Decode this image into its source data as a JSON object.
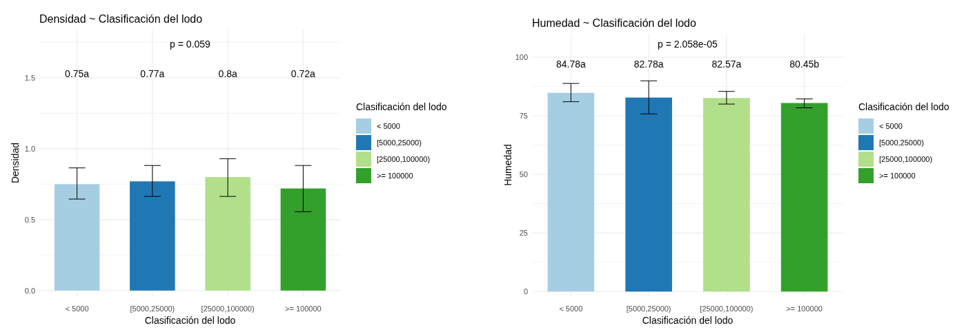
{
  "chart_data": [
    {
      "type": "bar",
      "title": "Densidad ~ Clasificación del lodo",
      "xlabel": "Clasificación del lodo",
      "ylabel": "Densidad",
      "legend_title": "Clasificación del lodo",
      "categories": [
        "< 5000",
        "[5000,25000)",
        "[25000,100000)",
        ">= 100000"
      ],
      "series": [
        {
          "name": "< 5000",
          "color": "#a6cee3",
          "values": [
            0.75,
            null,
            null,
            null
          ],
          "errors": [
            [
              0.645,
              0.865
            ],
            null,
            null,
            null
          ]
        },
        {
          "name": "[5000,25000)",
          "color": "#1f78b4",
          "values": [
            null,
            0.77,
            null,
            null
          ],
          "errors": [
            null,
            [
              0.664,
              0.882
            ],
            null,
            null
          ]
        },
        {
          "name": "[25000,100000)",
          "color": "#b2df8a",
          "values": [
            null,
            null,
            0.8,
            null
          ],
          "errors": [
            null,
            null,
            [
              0.664,
              0.93
            ],
            null
          ]
        },
        {
          "name": ">= 100000",
          "color": "#33a02c",
          "values": [
            null,
            null,
            null,
            0.72
          ],
          "errors": [
            null,
            null,
            null,
            [
              0.556,
              0.882
            ]
          ]
        }
      ],
      "ylim": [
        -0.04,
        1.84
      ],
      "yticks": [
        {
          "value": 0,
          "label": "0.0"
        },
        {
          "value": 0.25,
          "label": null
        },
        {
          "value": 0.5,
          "label": "0.5"
        },
        {
          "value": 0.75,
          "label": null
        },
        {
          "value": 1,
          "label": "1.0"
        },
        {
          "value": 1.25,
          "label": null
        },
        {
          "value": 1.5,
          "label": "1.5"
        },
        {
          "value": 1.75,
          "label": null
        }
      ],
      "grid": true,
      "legend": "right",
      "annotations": [
        "p = 0.059",
        "0.75a",
        "0.77a",
        "0.8a",
        "0.72a"
      ]
    },
    {
      "type": "bar",
      "title": "Humedad ~ Clasificación del lodo",
      "xlabel": "Clasificación del lodo",
      "ylabel": "Humedad",
      "legend_title": "Clasificación del lodo",
      "categories": [
        "< 5000",
        "[5000,25000)",
        "[25000,100000)",
        ">= 100000"
      ],
      "series": [
        {
          "name": "< 5000",
          "color": "#a6cee3",
          "values": [
            84.78,
            null,
            null,
            null
          ],
          "errors": [
            [
              81,
              88.8
            ],
            null,
            null,
            null
          ]
        },
        {
          "name": "[5000,25000)",
          "color": "#1f78b4",
          "values": [
            null,
            82.78,
            null,
            null
          ],
          "errors": [
            null,
            [
              75.8,
              89.9
            ],
            null,
            null
          ]
        },
        {
          "name": "[25000,100000)",
          "color": "#b2df8a",
          "values": [
            null,
            null,
            82.57,
            null
          ],
          "errors": [
            null,
            null,
            [
              80,
              85.4
            ],
            null
          ]
        },
        {
          "name": ">= 100000",
          "color": "#33a02c",
          "values": [
            null,
            null,
            null,
            80.45
          ],
          "errors": [
            null,
            null,
            null,
            [
              78.4,
              82.2
            ]
          ]
        }
      ],
      "ylim": [
        -2,
        110
      ],
      "yticks": [
        0,
        {
          "value": 12.5,
          "label": null
        },
        25,
        {
          "value": 37.5,
          "label": null
        },
        50,
        {
          "value": 62.5,
          "label": null
        },
        75,
        {
          "value": 87.5,
          "label": null
        },
        100
      ],
      "grid": true,
      "legend": "right",
      "annotations": [
        "p = 2.058e-05",
        "84.78a",
        "82.78a",
        "82.57a",
        "80.45b"
      ]
    }
  ]
}
